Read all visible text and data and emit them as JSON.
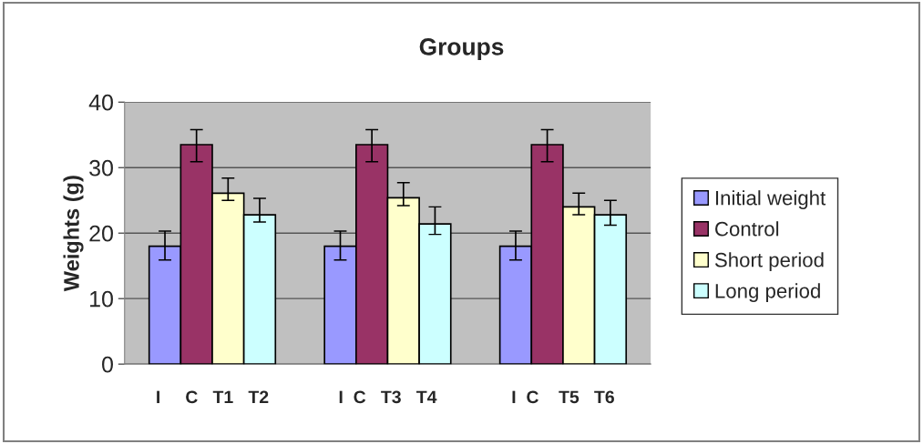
{
  "chart_data": {
    "type": "bar",
    "title": "Groups",
    "ylabel": "Weights (g)",
    "categories": [
      null,
      null,
      null
    ],
    "series": [
      {
        "name": "Initial weight",
        "color": "#9999ff",
        "values": [
          18,
          18,
          18
        ],
        "errors": [
          [
            15.9,
            20.3
          ],
          [
            15.9,
            20.3
          ],
          [
            15.9,
            20.3
          ]
        ]
      },
      {
        "name": "Control",
        "color": "#993366",
        "values": [
          33.5,
          33.5,
          33.5
        ],
        "errors": [
          [
            30.9,
            35.8
          ],
          [
            30.9,
            35.8
          ],
          [
            30.9,
            35.8
          ]
        ]
      },
      {
        "name": "Short period",
        "color": "#ffffcc",
        "values": [
          26.1,
          25.4,
          24
        ],
        "errors": [
          [
            25,
            28.4
          ],
          [
            24.2,
            27.7
          ],
          [
            22.8,
            26.1
          ]
        ]
      },
      {
        "name": "Long period",
        "color": "#ccffff",
        "values": [
          22.8,
          21.4,
          22.8
        ],
        "errors": [
          [
            21.7,
            25.3
          ],
          [
            19.8,
            24
          ],
          [
            21.2,
            25
          ]
        ]
      }
    ],
    "annotations": [
      "I     C   T1   T2",
      "I  C   T3   T4",
      "I  C    T5   T6"
    ],
    "ylim": [
      0,
      40
    ],
    "yticks": [
      0,
      10,
      20,
      30,
      40
    ],
    "grid": "y",
    "legend": "right"
  }
}
